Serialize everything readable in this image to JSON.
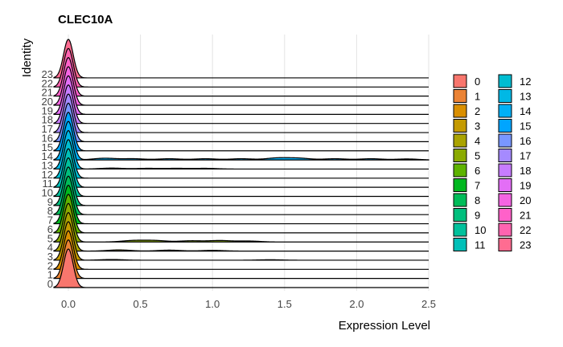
{
  "chart_data": {
    "type": "ridgeline",
    "title": "CLEC10A",
    "xlabel": "Expression Level",
    "ylabel": "Identity",
    "xlim": [
      -0.05,
      2.5
    ],
    "x_ticks": [
      "0.0",
      "0.5",
      "1.0",
      "1.5",
      "2.0",
      "2.5"
    ],
    "x_tick_values": [
      0.0,
      0.5,
      1.0,
      1.5,
      2.0,
      2.5
    ],
    "grid": true,
    "legend_position": "right",
    "categories": [
      "0",
      "1",
      "2",
      "3",
      "4",
      "5",
      "6",
      "7",
      "8",
      "9",
      "10",
      "11",
      "12",
      "13",
      "14",
      "15",
      "16",
      "17",
      "18",
      "19",
      "20",
      "21",
      "22",
      "23"
    ],
    "colors": [
      "#F8766D",
      "#EB8335",
      "#DA8F00",
      "#C49A00",
      "#AAA300",
      "#8BAB00",
      "#5EB300",
      "#00B81F",
      "#00BC59",
      "#00BF7D",
      "#00C19C",
      "#00C0B8",
      "#00BDD1",
      "#00B8E5",
      "#00B0F6",
      "#00A5FF",
      "#7997FF",
      "#A58AFF",
      "#C77CFF",
      "#E36EF6",
      "#F464E2",
      "#FF61C9",
      "#FF64B0",
      "#FF6C91"
    ],
    "series": [
      {
        "name": "0",
        "peak": 0.0,
        "tail": []
      },
      {
        "name": "1",
        "peak": 0.0,
        "tail": []
      },
      {
        "name": "2",
        "peak": 0.0,
        "tail": []
      },
      {
        "name": "3",
        "peak": 0.0,
        "tail": [
          [
            0.3,
            0.3
          ],
          [
            1.4,
            0.2
          ]
        ]
      },
      {
        "name": "4",
        "peak": 0.0,
        "tail": [
          [
            0.35,
            0.5
          ],
          [
            0.7,
            0.4
          ],
          [
            1.0,
            0.3
          ]
        ]
      },
      {
        "name": "5",
        "peak": 0.0,
        "tail": [
          [
            0.45,
            0.6
          ],
          [
            0.6,
            0.6
          ],
          [
            0.85,
            0.5
          ],
          [
            1.05,
            0.6
          ],
          [
            1.25,
            0.4
          ]
        ]
      },
      {
        "name": "6",
        "peak": 0.0,
        "tail": []
      },
      {
        "name": "7",
        "peak": 0.0,
        "tail": []
      },
      {
        "name": "8",
        "peak": 0.0,
        "tail": []
      },
      {
        "name": "9",
        "peak": 0.0,
        "tail": []
      },
      {
        "name": "10",
        "peak": 0.0,
        "tail": []
      },
      {
        "name": "11",
        "peak": 0.0,
        "tail": []
      },
      {
        "name": "12",
        "peak": 0.0,
        "tail": []
      },
      {
        "name": "13",
        "peak": 0.0,
        "tail": [
          [
            0.3,
            0.4
          ],
          [
            0.55,
            0.3
          ],
          [
            0.75,
            0.3
          ],
          [
            0.95,
            0.3
          ]
        ]
      },
      {
        "name": "14",
        "peak": 0.0,
        "tail": [
          [
            0.25,
            0.7
          ],
          [
            0.45,
            0.5
          ],
          [
            0.7,
            0.5
          ],
          [
            0.95,
            0.5
          ],
          [
            1.2,
            0.5
          ],
          [
            1.45,
            0.8
          ],
          [
            1.6,
            0.7
          ],
          [
            1.85,
            0.5
          ],
          [
            2.1,
            0.5
          ],
          [
            2.35,
            0.4
          ]
        ]
      },
      {
        "name": "15",
        "peak": 0.0,
        "tail": []
      },
      {
        "name": "16",
        "peak": 0.0,
        "tail": []
      },
      {
        "name": "17",
        "peak": 0.0,
        "tail": []
      },
      {
        "name": "18",
        "peak": 0.0,
        "tail": []
      },
      {
        "name": "19",
        "peak": 0.0,
        "tail": []
      },
      {
        "name": "20",
        "peak": 0.0,
        "tail": []
      },
      {
        "name": "21",
        "peak": 0.0,
        "tail": []
      },
      {
        "name": "22",
        "peak": 0.0,
        "tail": []
      },
      {
        "name": "23",
        "peak": 0.0,
        "tail": []
      }
    ]
  }
}
